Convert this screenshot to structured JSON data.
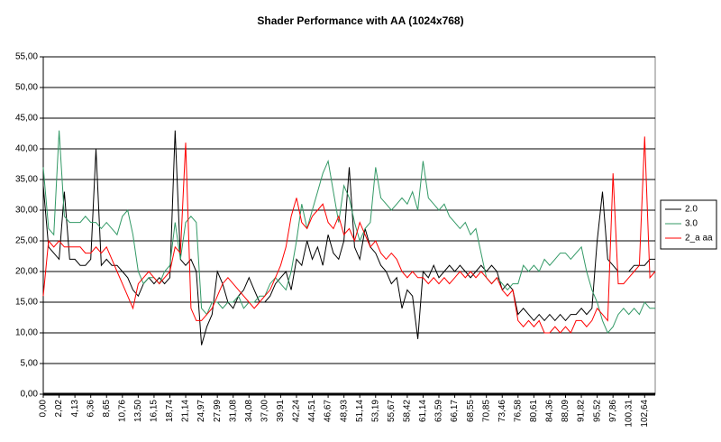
{
  "chart_data": {
    "type": "line",
    "title": "Shader Performance with AA (1024x768)",
    "categories": [
      "0,00",
      null,
      null,
      "2,02",
      null,
      null,
      "4,13",
      null,
      null,
      "6,36",
      null,
      null,
      "8,65",
      null,
      null,
      "10,76",
      null,
      null,
      "13,50",
      null,
      null,
      "16,15",
      null,
      null,
      "18,74",
      null,
      null,
      "21,14",
      null,
      null,
      "24,97",
      null,
      null,
      "27,99",
      null,
      null,
      "31,08",
      null,
      null,
      "34,08",
      null,
      null,
      "37,00",
      null,
      null,
      "39,91",
      null,
      null,
      "42,24",
      null,
      null,
      "44,51",
      null,
      null,
      "46,67",
      null,
      null,
      "48,93",
      null,
      null,
      "51,14",
      null,
      null,
      "53,19",
      null,
      null,
      "55,67",
      null,
      null,
      "58,42",
      null,
      null,
      "61,14",
      null,
      null,
      "63,59",
      null,
      null,
      "66,17",
      null,
      null,
      "68,55",
      null,
      null,
      "70,85",
      null,
      null,
      "73,46",
      null,
      null,
      "76,58",
      null,
      null,
      "80,61",
      null,
      null,
      "84,36",
      null,
      null,
      "88,09",
      null,
      null,
      "91,82",
      null,
      null,
      "95,52",
      null,
      null,
      "97,86",
      null,
      null,
      "100,31",
      null,
      null,
      "102,64",
      null,
      null
    ],
    "series": [
      {
        "name": "2.0",
        "color": "#000000",
        "values": [
          34,
          24,
          23,
          22,
          33,
          22,
          22,
          21,
          21,
          22,
          40,
          21,
          22,
          21,
          21,
          20,
          19,
          17,
          16,
          18,
          19,
          18,
          19,
          18,
          19,
          43,
          22,
          21,
          22,
          20,
          8,
          11,
          13,
          20,
          18,
          15,
          14,
          16,
          17,
          19,
          17,
          15,
          15,
          16,
          18,
          19,
          20,
          17,
          22,
          21,
          25,
          22,
          24,
          21,
          26,
          23,
          22,
          25,
          37,
          24,
          22,
          27,
          24,
          23,
          21,
          20,
          18,
          19,
          14,
          17,
          16,
          9,
          20,
          19,
          21,
          19,
          20,
          21,
          20,
          21,
          20,
          19,
          20,
          21,
          20,
          21,
          20,
          17,
          18,
          17,
          13,
          14,
          13,
          12,
          13,
          12,
          13,
          12,
          13,
          12,
          13,
          13,
          14,
          13,
          14,
          25,
          33,
          22,
          21,
          20,
          20,
          20,
          21,
          21,
          21,
          22,
          22
        ]
      },
      {
        "name": "3.0",
        "color": "#339966",
        "values": [
          37,
          27,
          26,
          43,
          29,
          28,
          28,
          28,
          29,
          28,
          28,
          27,
          28,
          27,
          26,
          29,
          30,
          26,
          20,
          18,
          19,
          19,
          18,
          20,
          21,
          28,
          22,
          28,
          29,
          28,
          14,
          13,
          15,
          15,
          14,
          15,
          15,
          16,
          14,
          15,
          15,
          16,
          16,
          18,
          19,
          18,
          17,
          20,
          25,
          31,
          27,
          30,
          33,
          36,
          38,
          33,
          28,
          34,
          32,
          28,
          25,
          27,
          28,
          37,
          32,
          31,
          30,
          31,
          32,
          31,
          33,
          30,
          38,
          32,
          31,
          30,
          31,
          29,
          28,
          27,
          28,
          26,
          27,
          23,
          19,
          18,
          19,
          18,
          17,
          18,
          18,
          21,
          20,
          21,
          20,
          22,
          21,
          22,
          23,
          23,
          22,
          23,
          24,
          20,
          17,
          15,
          12,
          10,
          11,
          13,
          14,
          13,
          14,
          13,
          15,
          14,
          14
        ]
      },
      {
        "name": "2_a aa",
        "color": "#ff0000",
        "values": [
          16,
          25,
          24,
          25,
          24,
          24,
          24,
          24,
          23,
          23,
          24,
          23,
          24,
          22,
          20,
          18,
          16,
          14,
          18,
          19,
          20,
          19,
          18,
          19,
          20,
          24,
          23,
          41,
          14,
          12,
          12,
          13,
          14,
          16,
          18,
          19,
          18,
          17,
          16,
          15,
          14,
          15,
          16,
          17,
          19,
          21,
          24,
          29,
          32,
          28,
          27,
          29,
          30,
          31,
          28,
          27,
          29,
          26,
          27,
          25,
          28,
          26,
          24,
          25,
          23,
          22,
          23,
          22,
          20,
          19,
          20,
          19,
          19,
          18,
          19,
          18,
          19,
          18,
          19,
          20,
          19,
          20,
          19,
          20,
          19,
          18,
          19,
          17,
          16,
          17,
          12,
          11,
          12,
          11,
          12,
          10,
          10,
          11,
          10,
          11,
          10,
          12,
          12,
          11,
          12,
          14,
          13,
          12,
          36,
          18,
          18,
          19,
          20,
          21,
          42,
          19,
          20
        ]
      }
    ],
    "ylim": [
      0,
      55
    ],
    "yticks": [
      {
        "value": 0,
        "label": "0,00"
      },
      {
        "value": 5,
        "label": "5,00"
      },
      {
        "value": 10,
        "label": "10,00"
      },
      {
        "value": 15,
        "label": "15,00"
      },
      {
        "value": 20,
        "label": "20,00"
      },
      {
        "value": 25,
        "label": "25,00"
      },
      {
        "value": 30,
        "label": "30,00"
      },
      {
        "value": 35,
        "label": "35,00"
      },
      {
        "value": 40,
        "label": "40,00"
      },
      {
        "value": 45,
        "label": "45,00"
      },
      {
        "value": 50,
        "label": "50,00"
      },
      {
        "value": 55,
        "label": "55,00"
      }
    ],
    "grid": true,
    "legend": "right"
  }
}
